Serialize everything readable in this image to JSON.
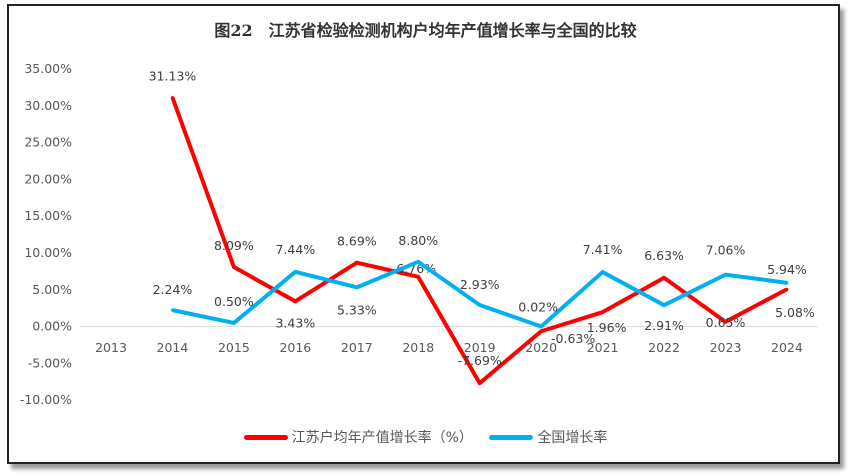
{
  "chart_data": {
    "type": "line",
    "title": "图22　江苏省检验检测机构户均年产值增长率与全国的比较",
    "categories": [
      "2013",
      "2014",
      "2015",
      "2016",
      "2017",
      "2018",
      "2019",
      "2020",
      "2021",
      "2022",
      "2023",
      "2024"
    ],
    "ylim": [
      -10,
      35
    ],
    "yticks": [
      "-10.00%",
      "-5.00%",
      "0.00%",
      "5.00%",
      "10.00%",
      "15.00%",
      "20.00%",
      "25.00%",
      "30.00%",
      "35.00%"
    ],
    "grid": false,
    "legend": "bottom",
    "series": [
      {
        "name": "江苏户均年产值增长率（%）",
        "color": "#ff0000",
        "values": [
          null,
          31.13,
          8.09,
          3.43,
          8.69,
          6.76,
          -7.69,
          -0.63,
          1.96,
          6.63,
          0.65,
          5.08
        ],
        "labels": [
          "",
          "31.13%",
          "8.09%",
          "3.43%",
          "8.69%",
          "6.76%",
          "-7.69%",
          "-0.63%",
          "1.96%",
          "6.63%",
          "0.65%",
          "5.08%"
        ]
      },
      {
        "name": "全国增长率",
        "color": "#00b0f0",
        "values": [
          null,
          2.24,
          0.5,
          7.44,
          5.33,
          8.8,
          2.93,
          0.02,
          7.41,
          2.91,
          7.06,
          5.94
        ],
        "labels": [
          "",
          "2.24%",
          "0.50%",
          "7.44%",
          "5.33%",
          "8.80%",
          "2.93%",
          "0.02%",
          "7.41%",
          "2.91%",
          "7.06%",
          "5.94%"
        ]
      }
    ]
  }
}
